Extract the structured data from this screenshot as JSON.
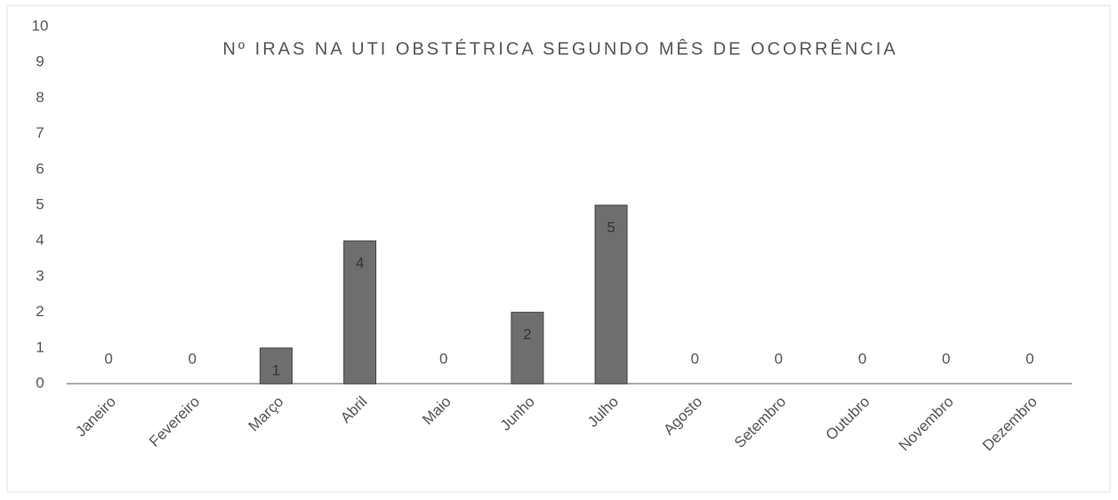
{
  "chart_data": {
    "type": "bar",
    "title": "Nº IRAS NA UTI OBSTÉTRICA SEGUNDO MÊS DE OCORRÊNCIA",
    "categories": [
      "Janeiro",
      "Fevereiro",
      "Março",
      "Abril",
      "Maio",
      "Junho",
      "Julho",
      "Agosto",
      "Setembro",
      "Outubro",
      "Novembro",
      "Dezembro"
    ],
    "values": [
      0,
      0,
      1,
      4,
      0,
      2,
      5,
      0,
      0,
      0,
      0,
      0
    ],
    "color": "#6e6e6e",
    "ylim": [
      0,
      10
    ],
    "yticks": [
      0,
      1,
      2,
      3,
      4,
      5,
      6,
      7,
      8,
      9,
      10
    ],
    "grid": false
  }
}
